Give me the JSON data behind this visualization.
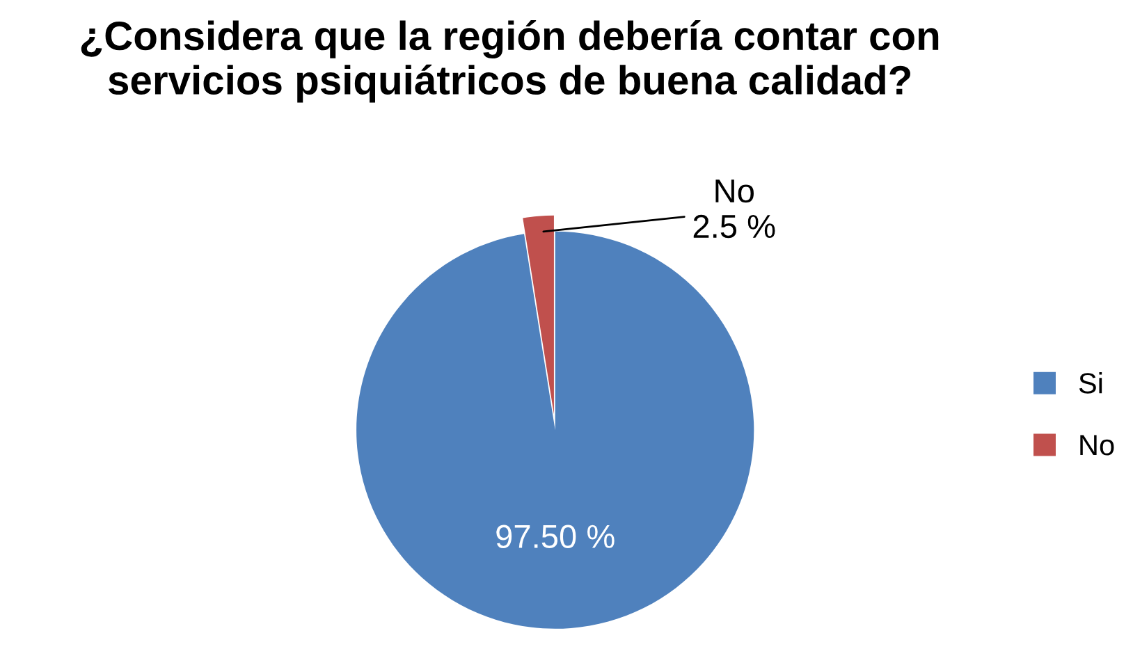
{
  "chart_data": {
    "type": "pie",
    "title": "¿Considera que la región debería contar con servicios psiquiátricos de buena calidad?",
    "categories": [
      "Si",
      "No"
    ],
    "values": [
      97.5,
      2.5
    ],
    "colors": [
      "#4f81bd",
      "#c0504d"
    ],
    "value_labels": [
      "97.50 %",
      "2.5 %"
    ],
    "legend": "right"
  }
}
